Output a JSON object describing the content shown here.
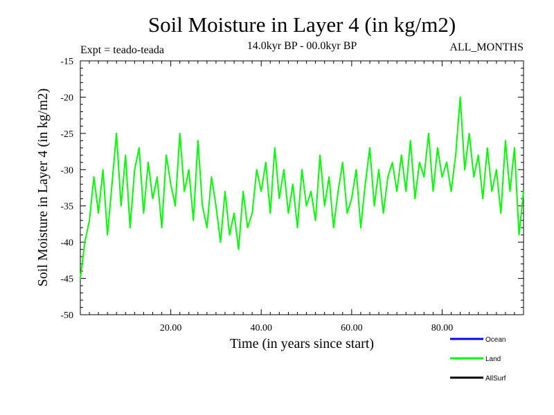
{
  "chart_data": {
    "type": "line",
    "title": "Soil Moisture in Layer 4 (in kg/m2)",
    "subtitle": "14.0kyr BP - 00.0kyr BP",
    "experiment": "Expt = teado-teada",
    "months": "ALL_MONTHS",
    "xlabel": "Time (in years since start)",
    "ylabel": "Soil Moisture in Layer 4 (in kg/m2)",
    "xlim": [
      0,
      98
    ],
    "ylim": [
      -50,
      -15
    ],
    "x_ticks": [
      20,
      40,
      60,
      80
    ],
    "x_tick_labels": [
      "20.00",
      "40.00",
      "60.00",
      "80.00"
    ],
    "y_ticks": [
      -15,
      -20,
      -25,
      -30,
      -35,
      -40,
      -45,
      -50
    ],
    "y_tick_labels": [
      "-15",
      "-20",
      "-25",
      "-30",
      "-35",
      "-40",
      "-45",
      "-50"
    ],
    "legend": [
      {
        "name": "Ocean",
        "color": "#0000ff"
      },
      {
        "name": "Land",
        "color": "#00ff00"
      },
      {
        "name": "AllSurf",
        "color": "#000000"
      }
    ],
    "series": [
      {
        "name": "Land",
        "color": "#00ff00",
        "x": [
          0,
          1,
          2,
          3,
          4,
          5,
          6,
          7,
          8,
          9,
          10,
          11,
          12,
          13,
          14,
          15,
          16,
          17,
          18,
          19,
          20,
          21,
          22,
          23,
          24,
          25,
          26,
          27,
          28,
          29,
          30,
          31,
          32,
          33,
          34,
          35,
          36,
          37,
          38,
          39,
          40,
          41,
          42,
          43,
          44,
          45,
          46,
          47,
          48,
          49,
          50,
          51,
          52,
          53,
          54,
          55,
          56,
          57,
          58,
          59,
          60,
          61,
          62,
          63,
          64,
          65,
          66,
          67,
          68,
          69,
          70,
          71,
          72,
          73,
          74,
          75,
          76,
          77,
          78,
          79,
          80,
          81,
          82,
          83,
          84,
          85,
          86,
          87,
          88,
          89,
          90,
          91,
          92,
          93,
          94,
          95,
          96,
          97,
          98
        ],
        "values": [
          -45,
          -40,
          -37,
          -31,
          -36,
          -30,
          -39,
          -32,
          -25,
          -35,
          -28,
          -38,
          -30,
          -27,
          -36,
          -29,
          -34,
          -31,
          -38,
          -28,
          -32,
          -35,
          -25,
          -33,
          -30,
          -37,
          -26,
          -35,
          -38,
          -31,
          -35,
          -40,
          -33,
          -39,
          -36,
          -41,
          -33,
          -38,
          -36,
          -30,
          -33,
          -29,
          -36,
          -27,
          -34,
          -30,
          -36,
          -32,
          -38,
          -30,
          -35,
          -33,
          -37,
          -28,
          -35,
          -31,
          -38,
          -33,
          -29,
          -36,
          -34,
          -30,
          -38,
          -32,
          -27,
          -35,
          -30,
          -36,
          -31,
          -29,
          -33,
          -28,
          -33,
          -26,
          -34,
          -29,
          -31,
          -25,
          -33,
          -27,
          -31,
          -29,
          -33,
          -28,
          -20,
          -30,
          -25,
          -31,
          -28,
          -34,
          -27,
          -33,
          -30,
          -36,
          -26,
          -33,
          -27,
          -39,
          -33
        ]
      }
    ]
  }
}
